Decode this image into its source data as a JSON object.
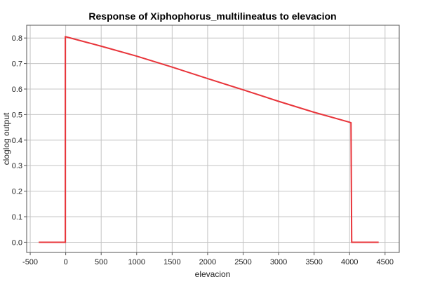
{
  "chart_data": {
    "type": "line",
    "title": "Response of Xiphophorus_multilineatus to elevacion",
    "xlabel": "elevacion",
    "ylabel": "cloglog output",
    "xlim": [
      -550,
      4700
    ],
    "ylim": [
      -0.04,
      0.85
    ],
    "grid": true,
    "x_ticks": [
      -500,
      0,
      500,
      1000,
      1500,
      2000,
      2500,
      3000,
      3500,
      4000,
      4500
    ],
    "y_ticks": [
      0.0,
      0.1,
      0.2,
      0.3,
      0.4,
      0.5,
      0.6,
      0.7,
      0.8
    ],
    "x_tick_labels": [
      "-500",
      "0",
      "500",
      "1000",
      "1500",
      "2000",
      "2500",
      "3000",
      "3500",
      "4000",
      "4500"
    ],
    "y_tick_labels": [
      "0.0",
      "0.1",
      "0.2",
      "0.3",
      "0.4",
      "0.5",
      "0.6",
      "0.7",
      "0.8"
    ],
    "series": [
      {
        "color": "#e8343a",
        "x": [
          -380,
          -5,
          -5,
          0,
          500,
          1000,
          1500,
          2000,
          2500,
          3000,
          3500,
          4000,
          4020,
          4030,
          4410
        ],
        "y": [
          0.0,
          0.0,
          0.805,
          0.805,
          0.768,
          0.729,
          0.686,
          0.641,
          0.597,
          0.552,
          0.509,
          0.47,
          0.468,
          0.0,
          0.0
        ]
      }
    ]
  }
}
